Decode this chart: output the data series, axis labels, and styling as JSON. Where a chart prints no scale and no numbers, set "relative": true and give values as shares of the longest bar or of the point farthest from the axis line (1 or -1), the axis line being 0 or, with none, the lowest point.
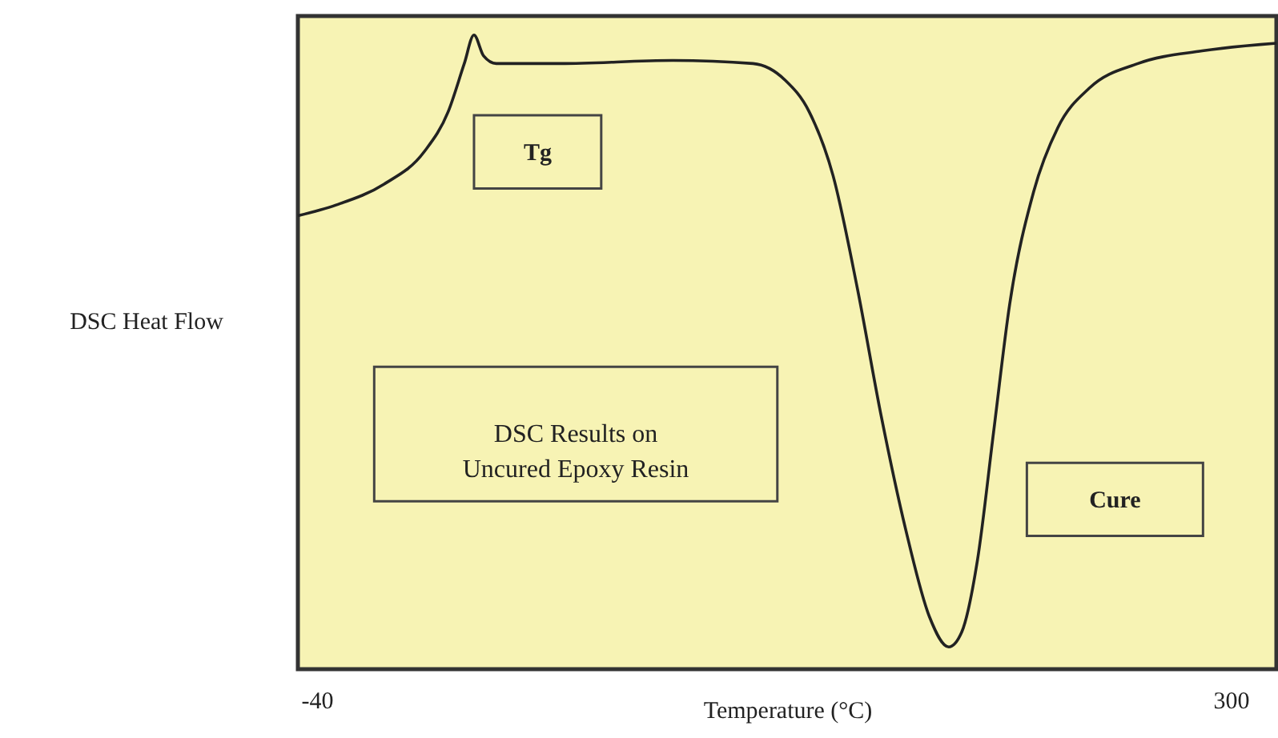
{
  "chart_data": {
    "type": "line",
    "relative": true,
    "xlabel": "Temperature (°C)",
    "ylabel": "DSC Heat Flow",
    "xlim": [
      -47,
      317
    ],
    "xticks": [
      -40,
      300
    ],
    "grid": false,
    "marker": "none",
    "line_style": "solid",
    "x": [
      -47,
      -32.8,
      -14.9,
      0.0,
      8.9,
      14.9,
      18.5,
      22.1,
      26.8,
      50.7,
      92.5,
      122.3,
      134.2,
      143.2,
      152.1,
      161.1,
      170.0,
      179.0,
      187.9,
      195.1,
      199.9,
      205.8,
      211.8,
      217.8,
      226.7,
      235.7,
      247.6,
      265.5,
      289.4,
      317
    ],
    "series": [
      {
        "color": "#222222",
        "values": [
          0.715,
          0.732,
          0.765,
          0.816,
          0.879,
          0.955,
          1.0,
          0.967,
          0.955,
          0.955,
          0.96,
          0.955,
          0.929,
          0.879,
          0.778,
          0.601,
          0.399,
          0.222,
          0.083,
          0.035,
          0.058,
          0.172,
          0.374,
          0.576,
          0.753,
          0.854,
          0.917,
          0.955,
          0.975,
          0.987
        ]
      }
    ],
    "annotations": [
      "Tg",
      "DSC Results on Uncured Epoxy Resin",
      "Cure"
    ]
  }
}
